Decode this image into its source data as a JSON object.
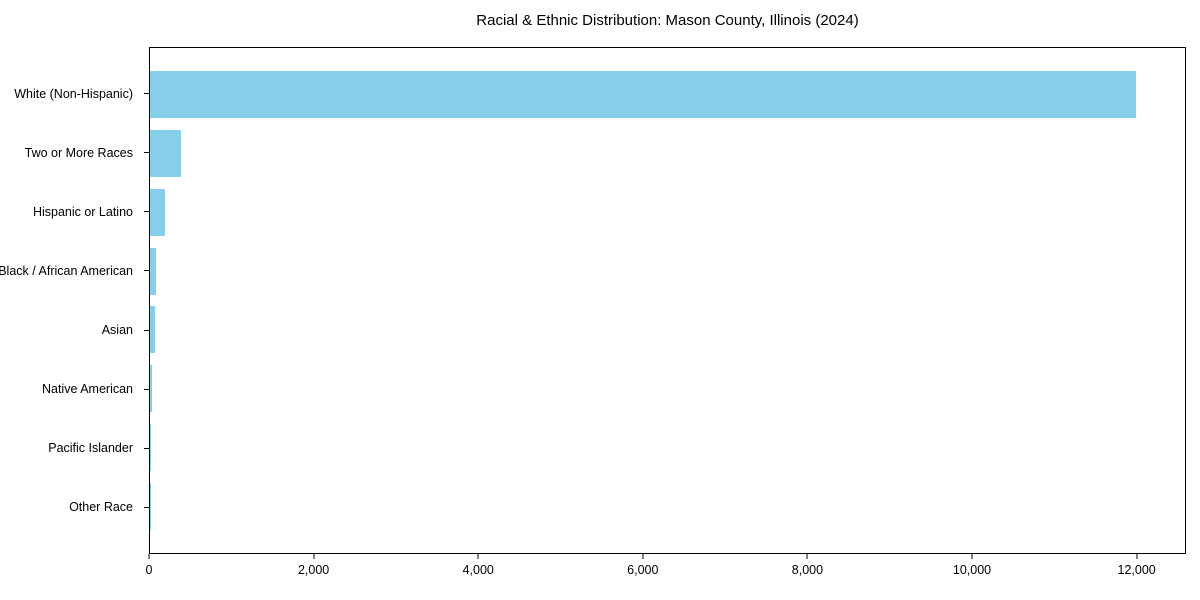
{
  "chart_data": {
    "type": "bar",
    "orientation": "horizontal",
    "title": "Racial & Ethnic Distribution: Mason County, Illinois (2024)",
    "xlabel": "",
    "ylabel": "",
    "categories": [
      "White (Non-Hispanic)",
      "Two or More Races",
      "Hispanic or Latino",
      "Black / African American",
      "Asian",
      "Native American",
      "Pacific Islander",
      "Other Race"
    ],
    "values": [
      12000,
      380,
      185,
      75,
      55,
      30,
      5,
      2
    ],
    "xlim": [
      0,
      12600
    ],
    "x_ticks": [
      0,
      2000,
      4000,
      6000,
      8000,
      10000,
      12000
    ],
    "x_tick_labels": [
      "0",
      "2,000",
      "4,000",
      "6,000",
      "8,000",
      "10,000",
      "12,000"
    ],
    "bar_color": "#87CEEB",
    "grid": false,
    "legend": "none",
    "background_color": "#ffffff",
    "spine_color": "#000000"
  }
}
